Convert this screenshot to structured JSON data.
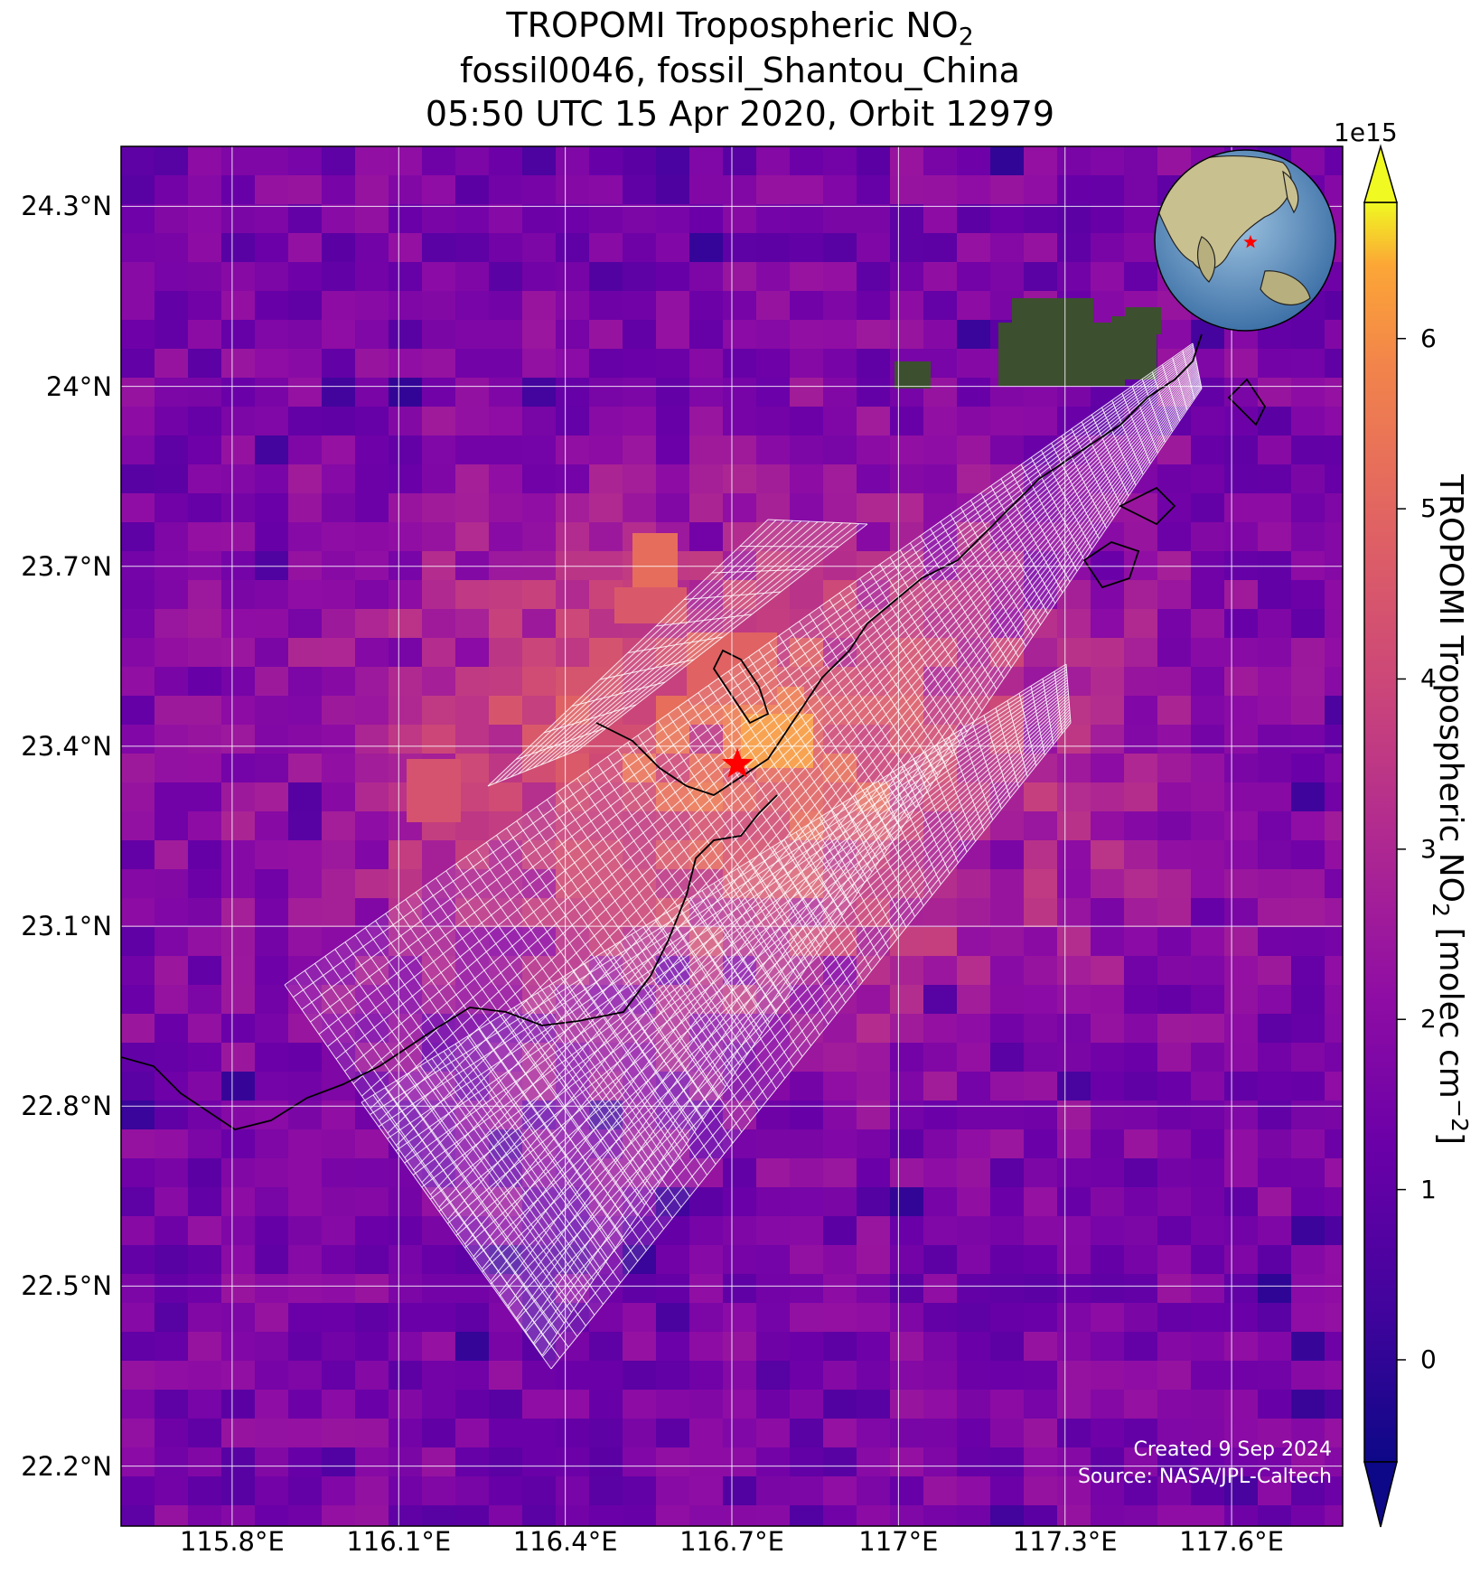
{
  "title": {
    "line1": "TROPOMI Tropospheric NO",
    "line1_sub": "2",
    "line2": "fossil0046, fossil_Shantou_China",
    "line3": "05:50 UTC 15 Apr 2020, Orbit 12979"
  },
  "map": {
    "lat_labels": [
      "24.3°N",
      "24°N",
      "23.7°N",
      "23.4°N",
      "23.1°N",
      "22.8°N",
      "22.5°N",
      "22.2°N"
    ],
    "lon_labels": [
      "115.8°E",
      "116.1°E",
      "116.4°E",
      "116.7°E",
      "117°E",
      "117.3°E",
      "117.6°E"
    ],
    "lat_values": [
      24.3,
      24.0,
      23.7,
      23.4,
      23.1,
      22.8,
      22.5,
      22.2
    ],
    "lon_values": [
      115.8,
      116.1,
      116.4,
      116.7,
      117.0,
      117.3,
      117.6
    ],
    "extent": {
      "lon_min": 115.6,
      "lon_max": 117.8,
      "lat_min": 22.1,
      "lat_max": 24.4
    },
    "site_marker": {
      "name": "fossil_Shantou_China",
      "lon": 116.71,
      "lat": 23.37,
      "color": "#ff0000"
    },
    "grid_color": "#ffffff",
    "colormap": "plasma"
  },
  "colorbar": {
    "exponent": "1e15",
    "ticks": [
      "0",
      "1",
      "2",
      "3",
      "4",
      "5",
      "6"
    ],
    "tick_values": [
      0,
      1,
      2,
      3,
      4,
      5,
      6
    ],
    "vmin": -0.6,
    "vmax": 6.8,
    "label": "TROPOMI Tropospheric NO",
    "label_sub": "2",
    "label_unit": " [molec cm",
    "label_sup": "−2",
    "label_end": "]"
  },
  "credit": {
    "line1": "Created 9 Sep 2024",
    "line2": "Source: NASA/JPL-Caltech"
  }
}
